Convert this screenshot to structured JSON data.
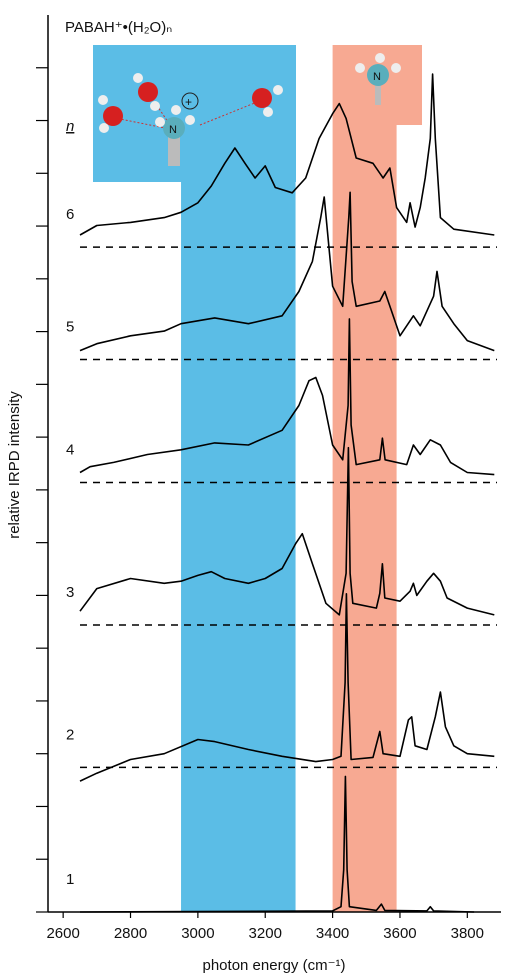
{
  "chart_data": {
    "type": "line",
    "title": "PABAH⁺•(H₂O)ₙ",
    "legend_title": "n",
    "x_label": "photon energy (cm⁻¹)",
    "y_label": "relative IRPD intensity",
    "xlim": [
      2555,
      3900
    ],
    "xticks": [
      2600,
      2800,
      3000,
      3200,
      3400,
      3600,
      3800
    ],
    "ylim": [
      0,
      17
    ],
    "yticks": [
      0,
      1,
      2,
      3,
      4,
      5,
      6,
      7,
      8,
      9,
      10,
      11,
      12,
      13,
      14,
      15,
      16
    ],
    "bands": [
      {
        "x": [
          2950,
          3290
        ],
        "color": "#5bbde6"
      },
      {
        "x": [
          3400,
          3590
        ],
        "color": "#f7a992"
      }
    ],
    "series": [
      {
        "name": "1",
        "color": "#000000",
        "offset": 0,
        "dashed_baseline": false,
        "x": [
          2650,
          3400,
          3425,
          3433,
          3438,
          3443,
          3450,
          3530,
          3545,
          3555,
          3680,
          3690,
          3700,
          3820
        ],
        "values": [
          0,
          0.02,
          0.1,
          0.8,
          2.57,
          0.8,
          0.1,
          0.03,
          0.15,
          0.03,
          0.02,
          0.1,
          0.02,
          0
        ]
      },
      {
        "name": "2",
        "color": "#000000",
        "offset": 2.74,
        "dashed_baseline": true,
        "x": [
          2650,
          2700,
          2800,
          2900,
          3000,
          3050,
          3150,
          3250,
          3350,
          3400,
          3425,
          3437,
          3441,
          3446,
          3455,
          3520,
          3540,
          3550,
          3600,
          3625,
          3635,
          3645,
          3680,
          3705,
          3720,
          3735,
          3760,
          3800,
          3880
        ],
        "values": [
          -0.26,
          -0.11,
          0.15,
          0.26,
          0.53,
          0.49,
          0.34,
          0.21,
          0.11,
          0.15,
          0.21,
          1.61,
          3.29,
          1.61,
          0.15,
          0.19,
          0.68,
          0.26,
          0.21,
          0.9,
          0.96,
          0.41,
          0.34,
          0.96,
          1.43,
          0.77,
          0.41,
          0.26,
          0.21
        ]
      },
      {
        "name": "3",
        "color": "#000000",
        "offset": 5.44,
        "dashed_baseline": true,
        "x": [
          2650,
          2700,
          2800,
          2900,
          2950,
          3000,
          3040,
          3080,
          3150,
          3200,
          3250,
          3290,
          3310,
          3340,
          3380,
          3420,
          3440,
          3447,
          3452,
          3460,
          3530,
          3540,
          3548,
          3555,
          3600,
          3630,
          3640,
          3650,
          3680,
          3700,
          3720,
          3740,
          3800,
          3880
        ],
        "values": [
          0.26,
          0.69,
          0.88,
          0.79,
          0.83,
          0.94,
          1.01,
          0.88,
          0.79,
          0.88,
          1.07,
          1.54,
          1.73,
          1.16,
          0.41,
          0.19,
          0.98,
          3.36,
          0.98,
          0.41,
          0.32,
          0.6,
          1.16,
          0.51,
          0.45,
          0.64,
          0.79,
          0.56,
          0.83,
          0.98,
          0.83,
          0.51,
          0.32,
          0.19
        ]
      },
      {
        "name": "4",
        "color": "#000000",
        "offset": 8.14,
        "dashed_baseline": true,
        "x": [
          2650,
          2680,
          2750,
          2850,
          2950,
          3050,
          3150,
          3250,
          3300,
          3330,
          3350,
          3370,
          3400,
          3430,
          3446,
          3450,
          3455,
          3470,
          3540,
          3548,
          3556,
          3620,
          3640,
          3660,
          3690,
          3720,
          3750,
          3800,
          3880
        ],
        "values": [
          0.19,
          0.3,
          0.38,
          0.53,
          0.62,
          0.75,
          0.71,
          0.99,
          1.46,
          1.93,
          1.99,
          1.65,
          0.71,
          0.43,
          1.46,
          3.1,
          1.09,
          0.34,
          0.43,
          0.84,
          0.43,
          0.34,
          0.71,
          0.53,
          0.81,
          0.71,
          0.38,
          0.19,
          0.15
        ]
      },
      {
        "name": "5",
        "color": "#000000",
        "offset": 10.47,
        "dashed_baseline": true,
        "x": [
          2650,
          2700,
          2800,
          2900,
          2950,
          3050,
          3150,
          3250,
          3300,
          3340,
          3365,
          3375,
          3385,
          3400,
          3430,
          3448,
          3452,
          3458,
          3470,
          3540,
          3555,
          3570,
          3600,
          3640,
          3660,
          3700,
          3710,
          3725,
          3760,
          3800,
          3880
        ],
        "values": [
          0.17,
          0.3,
          0.45,
          0.54,
          0.68,
          0.79,
          0.68,
          0.83,
          1.29,
          1.86,
          2.7,
          3.08,
          2.42,
          1.39,
          1.01,
          2.7,
          3.17,
          1.48,
          1.01,
          1.11,
          1.29,
          1.01,
          0.45,
          0.83,
          0.64,
          1.2,
          1.67,
          1.01,
          0.68,
          0.36,
          0.17
        ]
      },
      {
        "name": "6",
        "color": "#000000",
        "offset": 12.6,
        "dashed_baseline": true,
        "x": [
          2650,
          2700,
          2800,
          2900,
          2950,
          3000,
          3040,
          3080,
          3110,
          3140,
          3170,
          3200,
          3230,
          3280,
          3320,
          3360,
          3400,
          3420,
          3440,
          3470,
          3520,
          3550,
          3570,
          3590,
          3620,
          3630,
          3645,
          3660,
          3675,
          3690,
          3697,
          3705,
          3720,
          3760,
          3880
        ],
        "values": [
          0.23,
          0.41,
          0.47,
          0.56,
          0.66,
          0.84,
          1.16,
          1.59,
          1.88,
          1.59,
          1.31,
          1.54,
          1.13,
          1.03,
          1.31,
          2.06,
          2.53,
          2.72,
          2.44,
          1.69,
          1.59,
          1.31,
          1.5,
          0.75,
          0.47,
          0.84,
          0.38,
          0.75,
          1.31,
          2.06,
          3.28,
          2.06,
          0.56,
          0.34,
          0.23
        ]
      }
    ]
  }
}
